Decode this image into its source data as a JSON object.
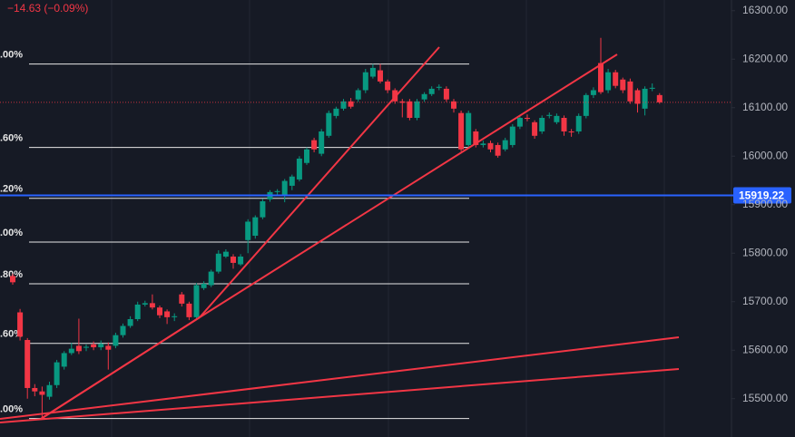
{
  "chart_data": {
    "type": "candlestick",
    "subtitle": "−14.63 (−0.09%)",
    "up_color": "#089981",
    "down_color": "#f23645",
    "open": [
      15753,
      15678,
      15621,
      15522,
      15515,
      15504,
      15528,
      15566,
      15594,
      15609,
      15605,
      15612,
      15606,
      15609,
      15609,
      15631,
      15650,
      15664,
      15694,
      15697,
      15688,
      15680,
      15668,
      15715,
      15696,
      15668,
      15728,
      15734,
      15762,
      15793,
      15793,
      15777,
      15827,
      15836,
      15874,
      15911,
      15926,
      15921,
      15939,
      15952,
      15986,
      16033,
      16005,
      16042,
      16083,
      16098,
      16113,
      16117,
      16136,
      16164,
      16177,
      16154,
      16136,
      16113,
      16113,
      16079,
      16117,
      16128,
      16141,
      16139,
      16113,
      16089,
      16023,
      16051,
      16023,
      16027,
      16023,
      16014,
      16023,
      16061,
      16079,
      16070,
      16051,
      16083,
      16070,
      16079,
      16051,
      16051,
      16083,
      16126,
      16192,
      16136,
      16173,
      16158,
      16154,
      16136,
      16098,
      16139,
      16126
    ],
    "high": [
      15758,
      15685,
      15625,
      15530,
      15525,
      15535,
      15580,
      15598,
      15615,
      15665,
      15612,
      15618,
      15620,
      15616,
      15636,
      15655,
      15670,
      15700,
      15702,
      15715,
      15692,
      15684,
      15676,
      15720,
      15700,
      15738,
      15742,
      15766,
      15806,
      15808,
      15798,
      15798,
      15870,
      15878,
      15912,
      15930,
      15932,
      15953,
      15962,
      16000,
      16018,
      16038,
      16056,
      16094,
      16102,
      16118,
      16120,
      16140,
      16180,
      16190,
      16190,
      16158,
      16140,
      16118,
      16118,
      16118,
      16132,
      16144,
      16148,
      16144,
      16118,
      16094,
      16094,
      16056,
      16032,
      16032,
      16028,
      16038,
      16066,
      16084,
      16086,
      16074,
      16084,
      16090,
      16088,
      16084,
      16056,
      16088,
      16130,
      16142,
      16244,
      16180,
      16178,
      16162,
      16160,
      16140,
      16144,
      16150,
      16130
    ],
    "low": [
      15735,
      15620,
      15500,
      15505,
      15462,
      15498,
      15522,
      15560,
      15590,
      15592,
      15598,
      15600,
      15600,
      15560,
      15604,
      15626,
      15646,
      15660,
      15690,
      15684,
      15666,
      15654,
      15660,
      15690,
      15662,
      15664,
      15724,
      15730,
      15758,
      15790,
      15768,
      15774,
      15800,
      15830,
      15870,
      15906,
      15920,
      15905,
      15930,
      15948,
      15982,
      16008,
      16000,
      16038,
      16078,
      16094,
      16098,
      16112,
      16130,
      16160,
      16150,
      16130,
      16108,
      16080,
      16074,
      16074,
      16112,
      16124,
      16136,
      16112,
      16090,
      16010,
      16018,
      16018,
      16018,
      16008,
      15997,
      16010,
      16018,
      16056,
      16072,
      16036,
      16046,
      16078,
      16066,
      16042,
      16040,
      16046,
      16078,
      16120,
      16128,
      16130,
      16140,
      16130,
      16108,
      16090,
      16084,
      16134,
      16108
    ],
    "close": [
      15740,
      15628,
      15522,
      15515,
      15508,
      15528,
      15575,
      15594,
      15603,
      15598,
      15607,
      15606,
      15613,
      15601,
      15631,
      15650,
      15664,
      15694,
      15697,
      15688,
      15672,
      15668,
      15670,
      15696,
      15668,
      15734,
      15737,
      15762,
      15799,
      15803,
      15780,
      15793,
      15865,
      15874,
      15907,
      15926,
      15928,
      15949,
      15958,
      15995,
      16014,
      16014,
      16051,
      16089,
      16098,
      16113,
      16102,
      16136,
      16173,
      16182,
      16154,
      16136,
      16113,
      16110,
      16079,
      16113,
      16128,
      16139,
      16143,
      16117,
      16098,
      16014,
      16089,
      16023,
      16026,
      16014,
      16001,
      16033,
      16061,
      16079,
      16077,
      16042,
      16079,
      16085,
      16083,
      16051,
      16049,
      16083,
      16126,
      16136,
      16132,
      16173,
      16145,
      16136,
      16113,
      16108,
      16139,
      16141,
      16111
    ],
    "ylim": [
      15421,
      16322
    ],
    "yticks": [
      {
        "value": 16300,
        "label": "16300.00"
      },
      {
        "value": 16200,
        "label": "16200.00"
      },
      {
        "value": 16100,
        "label": "16100.00"
      },
      {
        "value": 16000,
        "label": "16000.00"
      },
      {
        "value": 15900,
        "label": "15900.00"
      },
      {
        "value": 15800,
        "label": "15800.00"
      },
      {
        "value": 15700,
        "label": "15700.00"
      },
      {
        "value": 15600,
        "label": "15600.00"
      },
      {
        "value": 15500,
        "label": "15500.00"
      }
    ],
    "fib_levels": [
      {
        "label": ".00%",
        "value": 16190
      },
      {
        "label": ".60%",
        "value": 16018
      },
      {
        "label": ".20%",
        "value": 15913
      },
      {
        "label": ".00%",
        "value": 15823
      },
      {
        "label": ".80%",
        "value": 15737
      },
      {
        "label": ".60%",
        "value": 15614
      },
      {
        "label": ".00%",
        "value": 15459
      }
    ],
    "price_line": {
      "value": 15919.22,
      "label": "15919.22"
    }
  }
}
